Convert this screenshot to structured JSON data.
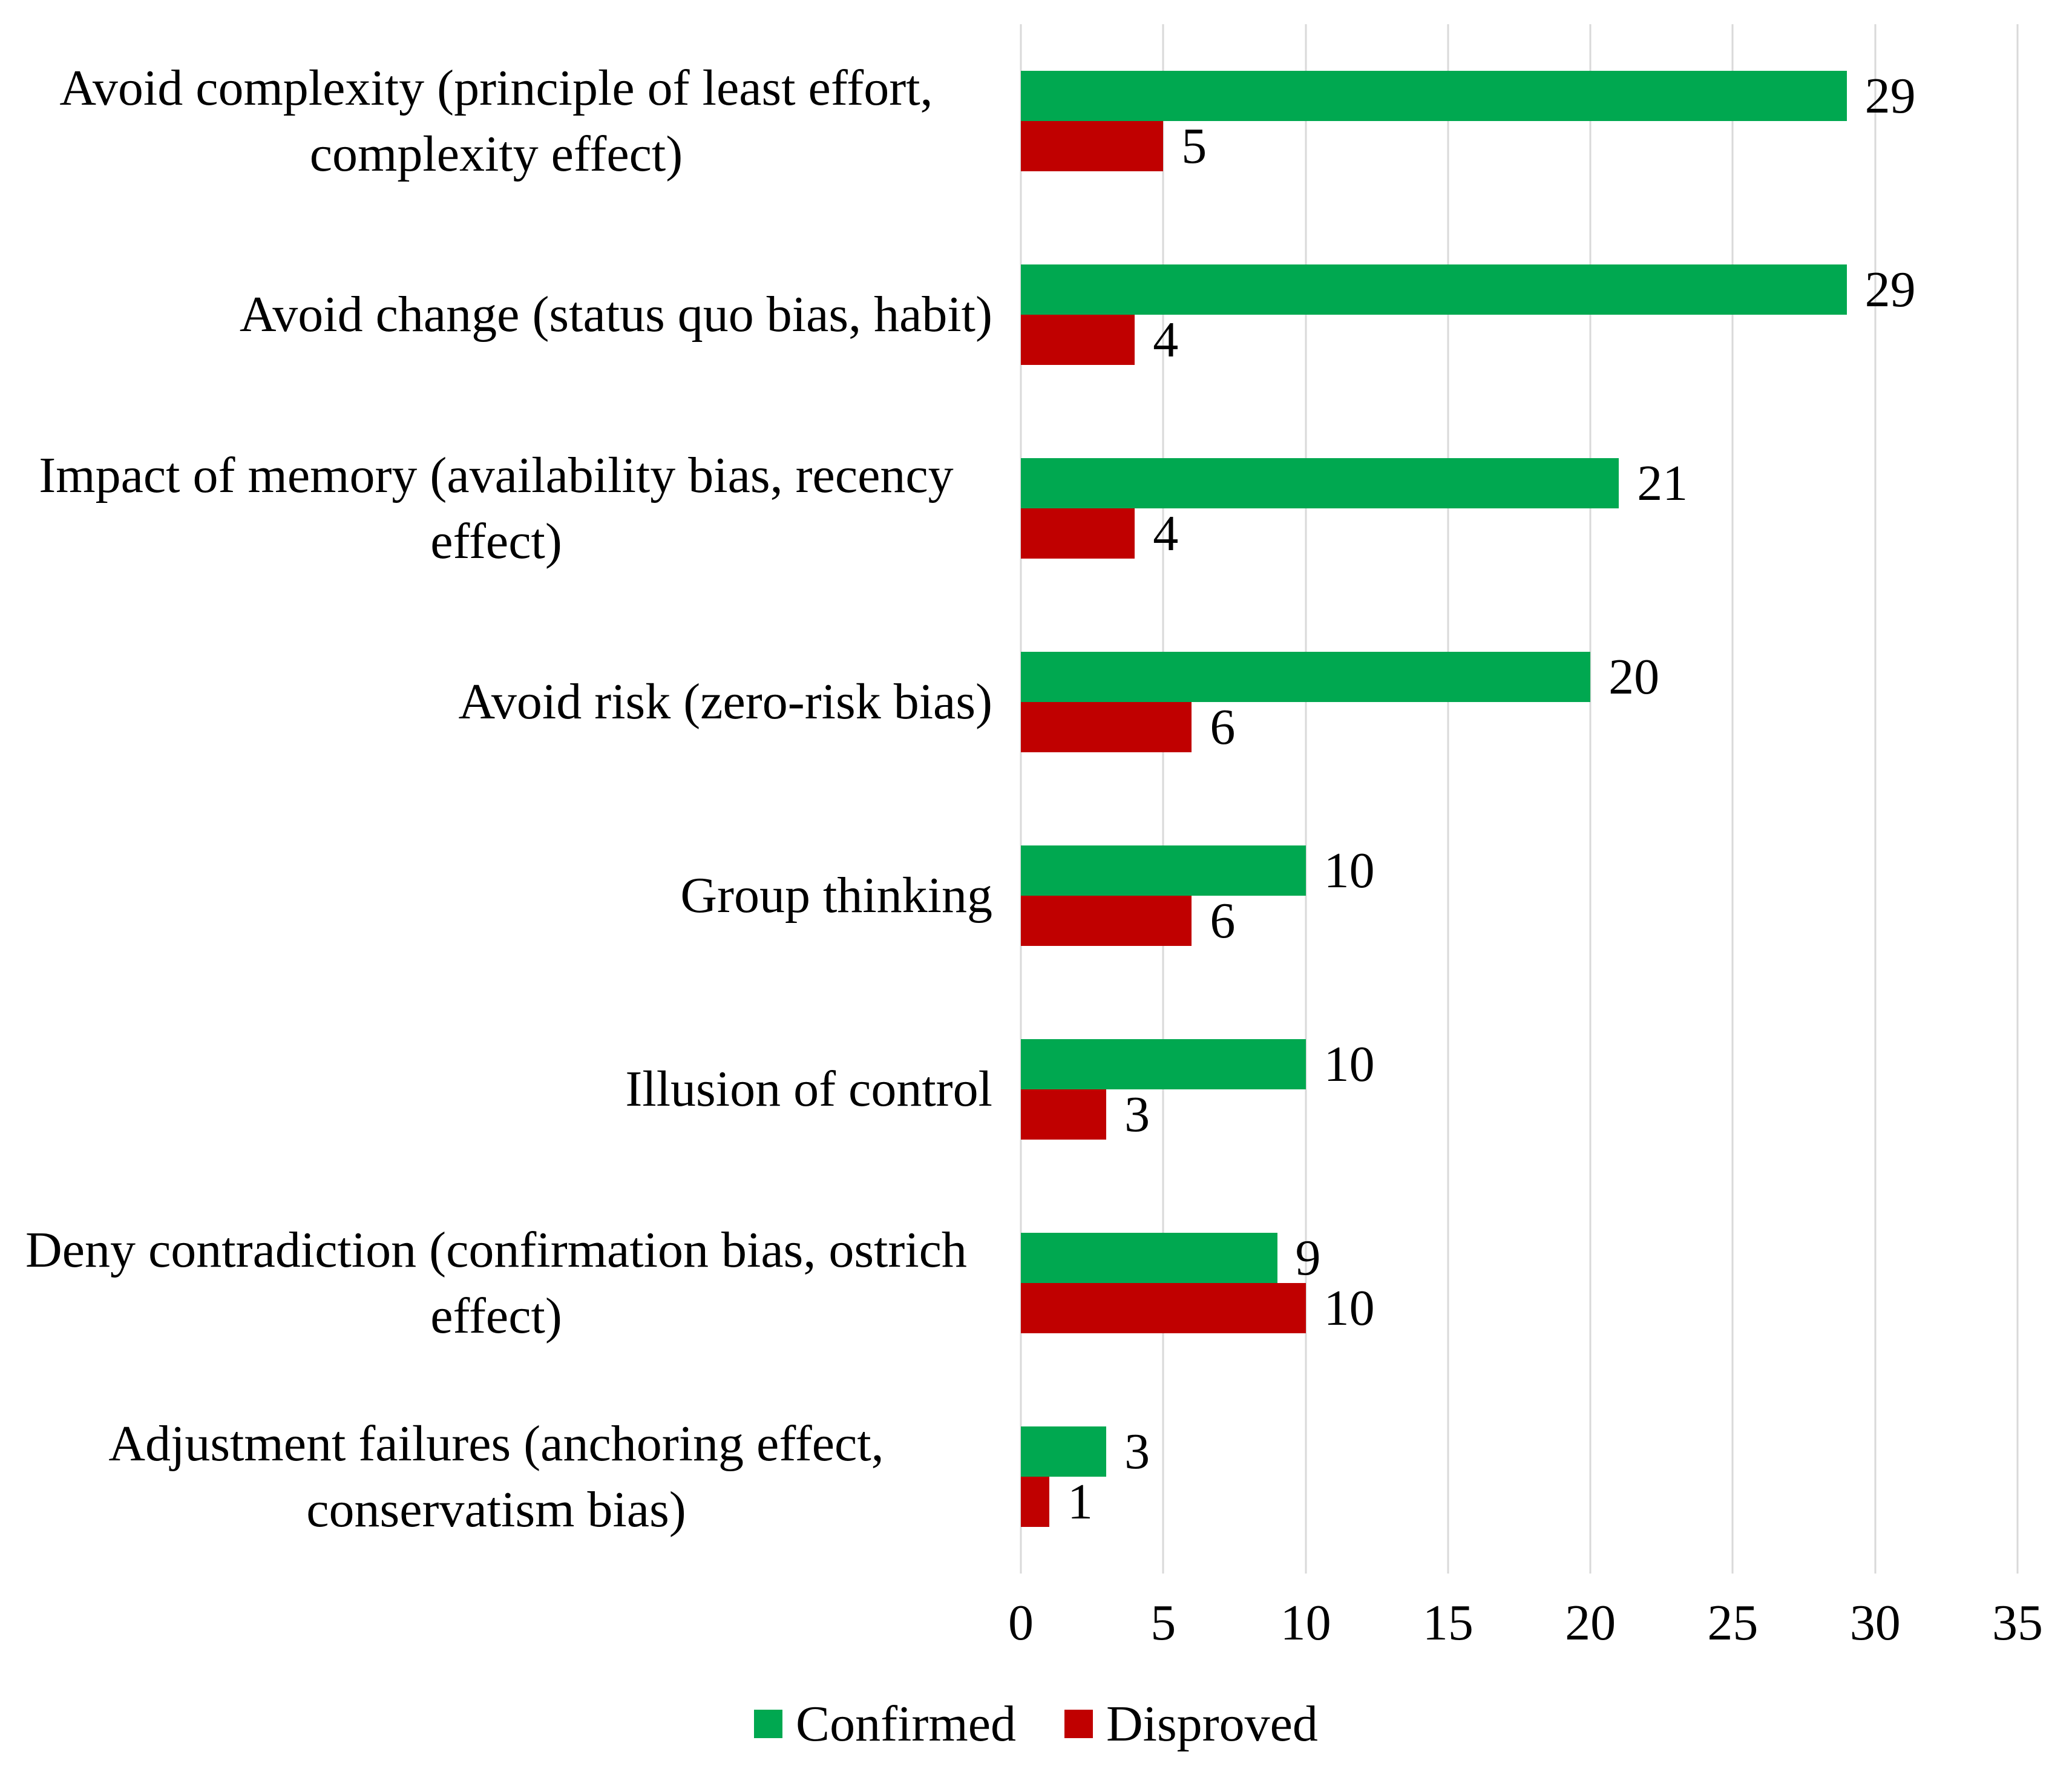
{
  "chart_data": {
    "type": "bar",
    "orientation": "horizontal",
    "title": "",
    "xlabel": "",
    "ylabel": "",
    "categories": [
      "Avoid complexity (principle of least effort, complexity effect)",
      "Avoid change (status quo bias, habit)",
      "Impact of memory (availability bias, recency effect)",
      "Avoid risk (zero-risk bias)",
      "Group thinking",
      "Illusion of control",
      "Deny contradiction (confirmation bias, ostrich effect)",
      "Adjustment failures (anchoring effect, conservatism bias)"
    ],
    "series": [
      {
        "name": "Confirmed",
        "color": "#00A850",
        "values": [
          29,
          29,
          21,
          20,
          10,
          10,
          9,
          3
        ]
      },
      {
        "name": "Disproved",
        "color": "#C00000",
        "values": [
          5,
          4,
          4,
          6,
          6,
          3,
          10,
          1
        ]
      }
    ],
    "value_labels_shown": true,
    "xlim": [
      0,
      35
    ],
    "xticks": [
      0,
      5,
      10,
      15,
      20,
      25,
      30,
      35
    ],
    "grid": "vertical",
    "gridline_color": "#D9D9D9",
    "legend_position": "bottom",
    "text_color": "#000000"
  }
}
